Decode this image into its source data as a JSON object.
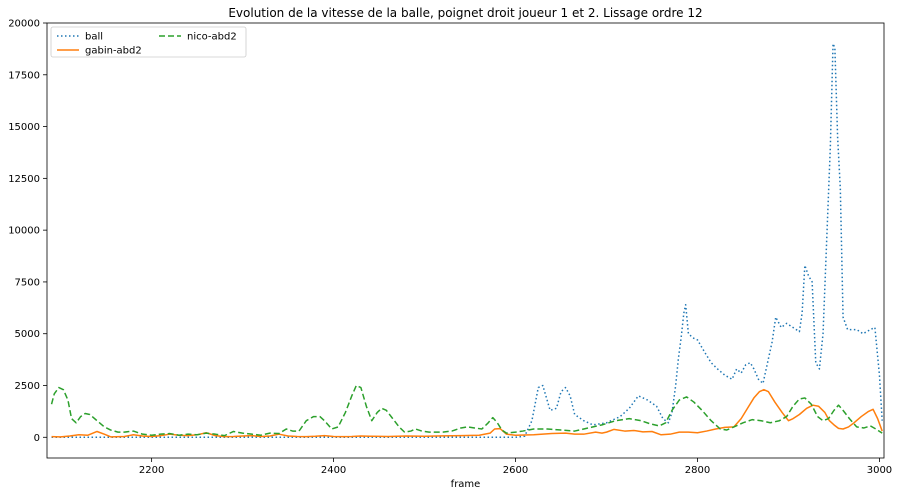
{
  "chart_data": {
    "type": "line",
    "title": "Evolution de la vitesse de la balle, poignet droit joueur 1 et 2. Lissage ordre 12",
    "xlabel": "frame",
    "ylabel": "",
    "xlim": [
      2085,
      3005
    ],
    "ylim": [
      -1000,
      20000
    ],
    "xticks": [
      2200,
      2400,
      2600,
      2800,
      3000
    ],
    "yticks": [
      0,
      2500,
      5000,
      7500,
      10000,
      12500,
      15000,
      17500,
      20000
    ],
    "grid": false,
    "legend": {
      "placement": "top-left",
      "columns": 2
    },
    "series": [
      {
        "name": "ball",
        "color": "#1f77b4",
        "style": "dotted",
        "points": [
          [
            2090,
            0
          ],
          [
            2150,
            0
          ],
          [
            2200,
            0
          ],
          [
            2300,
            0
          ],
          [
            2400,
            0
          ],
          [
            2500,
            0
          ],
          [
            2600,
            0
          ],
          [
            2610,
            50
          ],
          [
            2618,
            800
          ],
          [
            2625,
            2400
          ],
          [
            2630,
            2500
          ],
          [
            2638,
            1300
          ],
          [
            2645,
            1400
          ],
          [
            2650,
            2200
          ],
          [
            2655,
            2400
          ],
          [
            2660,
            2000
          ],
          [
            2665,
            1100
          ],
          [
            2675,
            800
          ],
          [
            2685,
            600
          ],
          [
            2700,
            700
          ],
          [
            2715,
            1000
          ],
          [
            2725,
            1400
          ],
          [
            2735,
            2000
          ],
          [
            2745,
            1800
          ],
          [
            2755,
            1500
          ],
          [
            2762,
            900
          ],
          [
            2768,
            700
          ],
          [
            2772,
            1200
          ],
          [
            2776,
            2500
          ],
          [
            2779,
            3800
          ],
          [
            2782,
            4800
          ],
          [
            2785,
            6000
          ],
          [
            2787,
            6400
          ],
          [
            2790,
            5000
          ],
          [
            2795,
            4800
          ],
          [
            2800,
            4700
          ],
          [
            2808,
            4100
          ],
          [
            2815,
            3600
          ],
          [
            2822,
            3300
          ],
          [
            2830,
            3000
          ],
          [
            2838,
            2800
          ],
          [
            2843,
            3300
          ],
          [
            2848,
            3100
          ],
          [
            2853,
            3500
          ],
          [
            2858,
            3600
          ],
          [
            2862,
            3300
          ],
          [
            2867,
            2800
          ],
          [
            2872,
            2600
          ],
          [
            2878,
            3800
          ],
          [
            2882,
            4600
          ],
          [
            2886,
            5800
          ],
          [
            2892,
            5300
          ],
          [
            2898,
            5500
          ],
          [
            2905,
            5300
          ],
          [
            2912,
            5100
          ],
          [
            2915,
            6000
          ],
          [
            2918,
            8300
          ],
          [
            2922,
            7800
          ],
          [
            2926,
            7500
          ],
          [
            2930,
            3600
          ],
          [
            2934,
            3300
          ],
          [
            2938,
            5000
          ],
          [
            2942,
            9500
          ],
          [
            2946,
            14000
          ],
          [
            2949,
            19000
          ],
          [
            2951,
            18800
          ],
          [
            2954,
            14500
          ],
          [
            2957,
            12000
          ],
          [
            2960,
            5800
          ],
          [
            2965,
            5200
          ],
          [
            2975,
            5200
          ],
          [
            2982,
            5000
          ],
          [
            2990,
            5200
          ],
          [
            2995,
            5300
          ],
          [
            3000,
            3000
          ],
          [
            3003,
            800
          ]
        ]
      },
      {
        "name": "gabin-abd2",
        "color": "#ff7f0e",
        "style": "solid",
        "points": [
          [
            2090,
            30
          ],
          [
            2100,
            20
          ],
          [
            2110,
            60
          ],
          [
            2120,
            120
          ],
          [
            2130,
            100
          ],
          [
            2140,
            280
          ],
          [
            2148,
            150
          ],
          [
            2155,
            20
          ],
          [
            2170,
            40
          ],
          [
            2180,
            120
          ],
          [
            2190,
            60
          ],
          [
            2200,
            40
          ],
          [
            2210,
            80
          ],
          [
            2220,
            150
          ],
          [
            2230,
            100
          ],
          [
            2240,
            80
          ],
          [
            2250,
            120
          ],
          [
            2260,
            220
          ],
          [
            2270,
            80
          ],
          [
            2280,
            30
          ],
          [
            2290,
            40
          ],
          [
            2300,
            60
          ],
          [
            2310,
            80
          ],
          [
            2320,
            40
          ],
          [
            2330,
            60
          ],
          [
            2340,
            150
          ],
          [
            2350,
            60
          ],
          [
            2360,
            40
          ],
          [
            2370,
            30
          ],
          [
            2380,
            50
          ],
          [
            2390,
            80
          ],
          [
            2400,
            40
          ],
          [
            2410,
            30
          ],
          [
            2420,
            40
          ],
          [
            2430,
            60
          ],
          [
            2440,
            50
          ],
          [
            2460,
            40
          ],
          [
            2480,
            60
          ],
          [
            2500,
            50
          ],
          [
            2520,
            70
          ],
          [
            2540,
            80
          ],
          [
            2560,
            100
          ],
          [
            2572,
            200
          ],
          [
            2577,
            400
          ],
          [
            2583,
            420
          ],
          [
            2590,
            150
          ],
          [
            2600,
            100
          ],
          [
            2620,
            120
          ],
          [
            2640,
            180
          ],
          [
            2655,
            200
          ],
          [
            2665,
            150
          ],
          [
            2675,
            150
          ],
          [
            2688,
            250
          ],
          [
            2695,
            200
          ],
          [
            2700,
            250
          ],
          [
            2708,
            380
          ],
          [
            2720,
            300
          ],
          [
            2730,
            330
          ],
          [
            2740,
            260
          ],
          [
            2750,
            280
          ],
          [
            2760,
            120
          ],
          [
            2770,
            150
          ],
          [
            2780,
            250
          ],
          [
            2790,
            250
          ],
          [
            2800,
            220
          ],
          [
            2810,
            300
          ],
          [
            2820,
            400
          ],
          [
            2830,
            480
          ],
          [
            2840,
            500
          ],
          [
            2848,
            900
          ],
          [
            2855,
            1400
          ],
          [
            2862,
            1900
          ],
          [
            2868,
            2200
          ],
          [
            2873,
            2300
          ],
          [
            2878,
            2200
          ],
          [
            2885,
            1700
          ],
          [
            2893,
            1200
          ],
          [
            2900,
            800
          ],
          [
            2905,
            900
          ],
          [
            2912,
            1100
          ],
          [
            2920,
            1400
          ],
          [
            2927,
            1550
          ],
          [
            2933,
            1500
          ],
          [
            2940,
            1200
          ],
          [
            2945,
            800
          ],
          [
            2950,
            600
          ],
          [
            2955,
            430
          ],
          [
            2960,
            400
          ],
          [
            2966,
            500
          ],
          [
            2972,
            700
          ],
          [
            2980,
            1000
          ],
          [
            2988,
            1250
          ],
          [
            2993,
            1350
          ],
          [
            2998,
            900
          ],
          [
            3003,
            300
          ]
        ]
      },
      {
        "name": "nico-abd2",
        "color": "#2ca02c",
        "style": "dashed",
        "points": [
          [
            2090,
            1600
          ],
          [
            2093,
            2100
          ],
          [
            2098,
            2400
          ],
          [
            2103,
            2300
          ],
          [
            2108,
            1800
          ],
          [
            2112,
            900
          ],
          [
            2117,
            700
          ],
          [
            2122,
            1000
          ],
          [
            2127,
            1150
          ],
          [
            2132,
            1100
          ],
          [
            2140,
            800
          ],
          [
            2148,
            500
          ],
          [
            2155,
            350
          ],
          [
            2163,
            250
          ],
          [
            2170,
            250
          ],
          [
            2180,
            300
          ],
          [
            2190,
            150
          ],
          [
            2200,
            100
          ],
          [
            2210,
            150
          ],
          [
            2220,
            180
          ],
          [
            2230,
            100
          ],
          [
            2240,
            150
          ],
          [
            2250,
            120
          ],
          [
            2260,
            200
          ],
          [
            2270,
            150
          ],
          [
            2280,
            80
          ],
          [
            2290,
            280
          ],
          [
            2300,
            200
          ],
          [
            2310,
            150
          ],
          [
            2320,
            100
          ],
          [
            2330,
            200
          ],
          [
            2340,
            180
          ],
          [
            2348,
            400
          ],
          [
            2355,
            300
          ],
          [
            2362,
            300
          ],
          [
            2370,
            800
          ],
          [
            2378,
            1000
          ],
          [
            2385,
            1000
          ],
          [
            2390,
            800
          ],
          [
            2398,
            400
          ],
          [
            2405,
            500
          ],
          [
            2413,
            1200
          ],
          [
            2420,
            2000
          ],
          [
            2425,
            2500
          ],
          [
            2430,
            2400
          ],
          [
            2436,
            1500
          ],
          [
            2442,
            800
          ],
          [
            2448,
            1200
          ],
          [
            2453,
            1400
          ],
          [
            2458,
            1300
          ],
          [
            2465,
            900
          ],
          [
            2472,
            500
          ],
          [
            2478,
            250
          ],
          [
            2485,
            300
          ],
          [
            2490,
            400
          ],
          [
            2497,
            300
          ],
          [
            2505,
            250
          ],
          [
            2520,
            250
          ],
          [
            2530,
            300
          ],
          [
            2540,
            450
          ],
          [
            2547,
            500
          ],
          [
            2555,
            450
          ],
          [
            2563,
            400
          ],
          [
            2570,
            700
          ],
          [
            2575,
            950
          ],
          [
            2580,
            700
          ],
          [
            2585,
            350
          ],
          [
            2590,
            200
          ],
          [
            2600,
            250
          ],
          [
            2608,
            300
          ],
          [
            2620,
            400
          ],
          [
            2635,
            400
          ],
          [
            2650,
            350
          ],
          [
            2665,
            300
          ],
          [
            2680,
            450
          ],
          [
            2695,
            600
          ],
          [
            2710,
            800
          ],
          [
            2725,
            900
          ],
          [
            2738,
            800
          ],
          [
            2748,
            650
          ],
          [
            2758,
            550
          ],
          [
            2765,
            700
          ],
          [
            2772,
            1300
          ],
          [
            2780,
            1800
          ],
          [
            2788,
            1950
          ],
          [
            2796,
            1700
          ],
          [
            2805,
            1300
          ],
          [
            2815,
            800
          ],
          [
            2825,
            400
          ],
          [
            2832,
            350
          ],
          [
            2840,
            500
          ],
          [
            2850,
            700
          ],
          [
            2860,
            850
          ],
          [
            2870,
            800
          ],
          [
            2880,
            700
          ],
          [
            2890,
            800
          ],
          [
            2898,
            1000
          ],
          [
            2905,
            1500
          ],
          [
            2912,
            1850
          ],
          [
            2918,
            1900
          ],
          [
            2925,
            1600
          ],
          [
            2932,
            1000
          ],
          [
            2938,
            800
          ],
          [
            2944,
            900
          ],
          [
            2950,
            1300
          ],
          [
            2955,
            1550
          ],
          [
            2960,
            1300
          ],
          [
            2967,
            900
          ],
          [
            2975,
            500
          ],
          [
            2983,
            450
          ],
          [
            2990,
            550
          ],
          [
            2996,
            400
          ],
          [
            3003,
            200
          ]
        ]
      }
    ]
  }
}
